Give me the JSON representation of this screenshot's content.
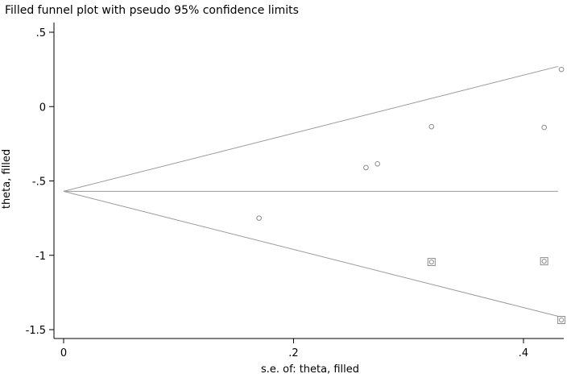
{
  "chart_data": {
    "type": "scatter",
    "title": "Filled funnel plot with pseudo 95% confidence limits",
    "xlabel": "s.e. of: theta, filled",
    "ylabel": "theta, filled",
    "xlim": [
      0,
      0.43
    ],
    "ylim": [
      -1.5,
      0.5
    ],
    "x_ticks": [
      {
        "value": 0,
        "label": "0"
      },
      {
        "value": 0.2,
        "label": ".2"
      },
      {
        "value": 0.4,
        "label": ".4"
      }
    ],
    "y_ticks": [
      {
        "value": 0.5,
        "label": ".5"
      },
      {
        "value": 0,
        "label": "0"
      },
      {
        "value": -0.5,
        "label": "-.5"
      },
      {
        "value": -1,
        "label": "-1"
      },
      {
        "value": -1.5,
        "label": "-1.5"
      }
    ],
    "pooled_estimate": -0.57,
    "funnel": {
      "apex": [
        0,
        -0.57
      ],
      "upper_end": [
        0.43,
        0.27
      ],
      "lower_end": [
        0.43,
        -1.41
      ]
    },
    "series": [
      {
        "marker": "circle",
        "points": [
          {
            "x": 0.17,
            "y": -0.75
          },
          {
            "x": 0.263,
            "y": -0.41
          },
          {
            "x": 0.273,
            "y": -0.385
          },
          {
            "x": 0.32,
            "y": -0.135
          },
          {
            "x": 0.418,
            "y": -0.14
          },
          {
            "x": 0.433,
            "y": 0.25
          }
        ]
      },
      {
        "marker": "square-with-circle",
        "points": [
          {
            "x": 0.32,
            "y": -1.045
          },
          {
            "x": 0.418,
            "y": -1.04
          },
          {
            "x": 0.433,
            "y": -1.435
          }
        ]
      }
    ],
    "grid": false,
    "legend": "none"
  },
  "colors": {
    "axis": "#000000",
    "funnel_line": "#9a9a9a",
    "marker": "#8c8c8c"
  }
}
